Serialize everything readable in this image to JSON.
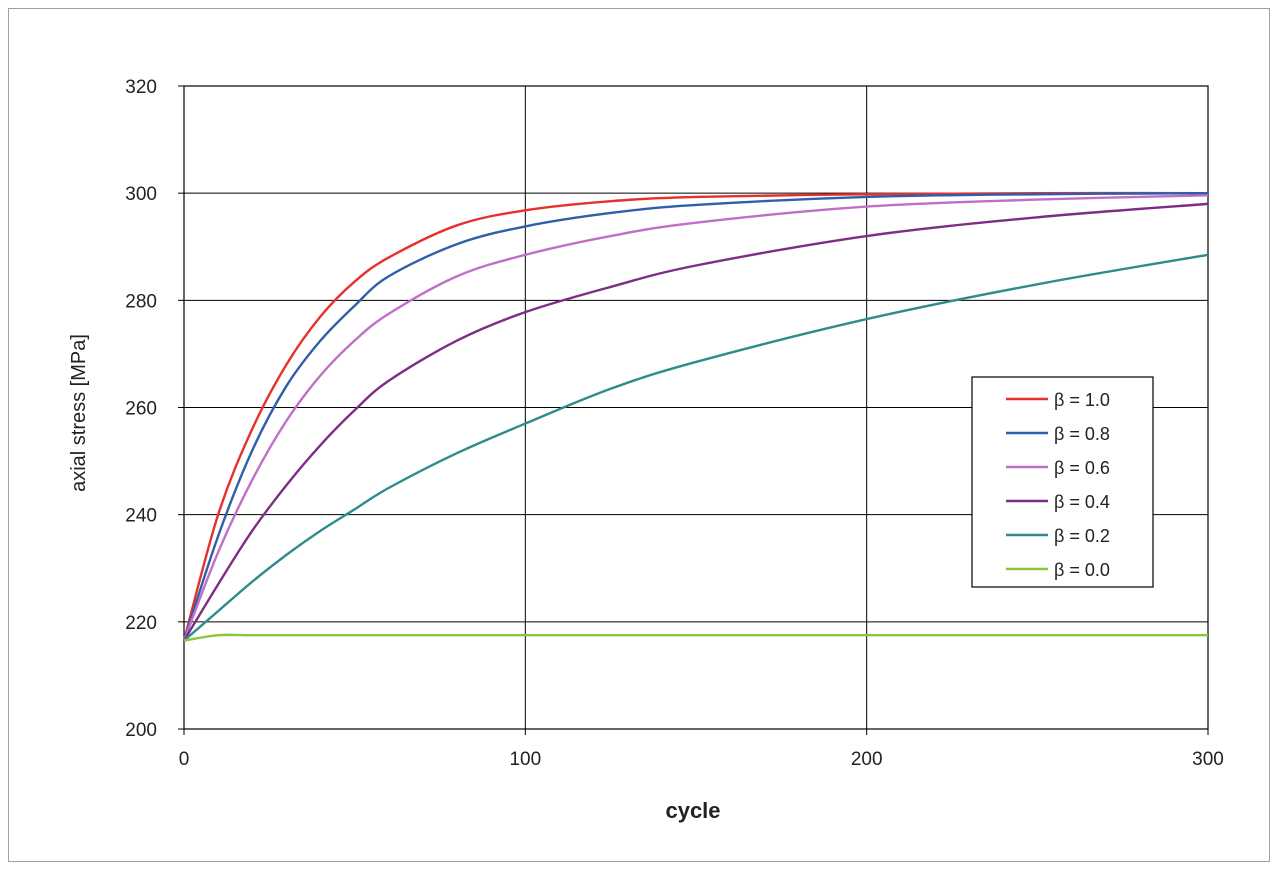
{
  "chart_data": {
    "type": "line",
    "xlabel": "cycle",
    "ylabel": "axial stress [MPa]",
    "xlim": [
      0,
      300
    ],
    "ylim": [
      200,
      320
    ],
    "xticks": [
      "0",
      "100",
      "200",
      "300"
    ],
    "yticks": [
      "200",
      "220",
      "240",
      "260",
      "280",
      "300",
      "320"
    ],
    "grid": true,
    "legend_position": "right",
    "x": [
      0,
      10,
      20,
      30,
      40,
      50,
      60,
      80,
      100,
      125,
      150,
      200,
      250,
      300
    ],
    "series": [
      {
        "name": "β = 1.0",
        "color": "#e8302b",
        "values": [
          216.5,
          240,
          256,
          268,
          277,
          283.5,
          288,
          294,
          296.8,
          298.5,
          299.3,
          299.8,
          300,
          300
        ]
      },
      {
        "name": "β = 0.8",
        "color": "#2f5fa8",
        "values": [
          216.5,
          236,
          252,
          264,
          272.5,
          279,
          284.5,
          290.5,
          293.8,
          296.3,
          297.8,
          299.3,
          299.8,
          300
        ]
      },
      {
        "name": "β = 0.6",
        "color": "#c06fc8",
        "values": [
          216.5,
          233,
          246.5,
          257.5,
          266,
          272.5,
          277.5,
          284.5,
          288.5,
          292,
          294.5,
          297.5,
          298.8,
          299.6
        ]
      },
      {
        "name": "β = 0.4",
        "color": "#7e2d86",
        "values": [
          216.5,
          227,
          237,
          245.5,
          253,
          259.5,
          265,
          272.5,
          277.8,
          282.5,
          286.5,
          292,
          295.5,
          298
        ]
      },
      {
        "name": "β = 0.2",
        "color": "#2e8c8c",
        "values": [
          216.5,
          222,
          227.5,
          232.5,
          237,
          241,
          245,
          251.5,
          257,
          263.5,
          268.5,
          276.5,
          283,
          288.5
        ]
      },
      {
        "name": "β = 0.0",
        "color": "#8cc63f",
        "values": [
          216.5,
          217.5,
          217.5,
          217.5,
          217.5,
          217.5,
          217.5,
          217.5,
          217.5,
          217.5,
          217.5,
          217.5,
          217.5,
          217.5
        ]
      }
    ]
  }
}
